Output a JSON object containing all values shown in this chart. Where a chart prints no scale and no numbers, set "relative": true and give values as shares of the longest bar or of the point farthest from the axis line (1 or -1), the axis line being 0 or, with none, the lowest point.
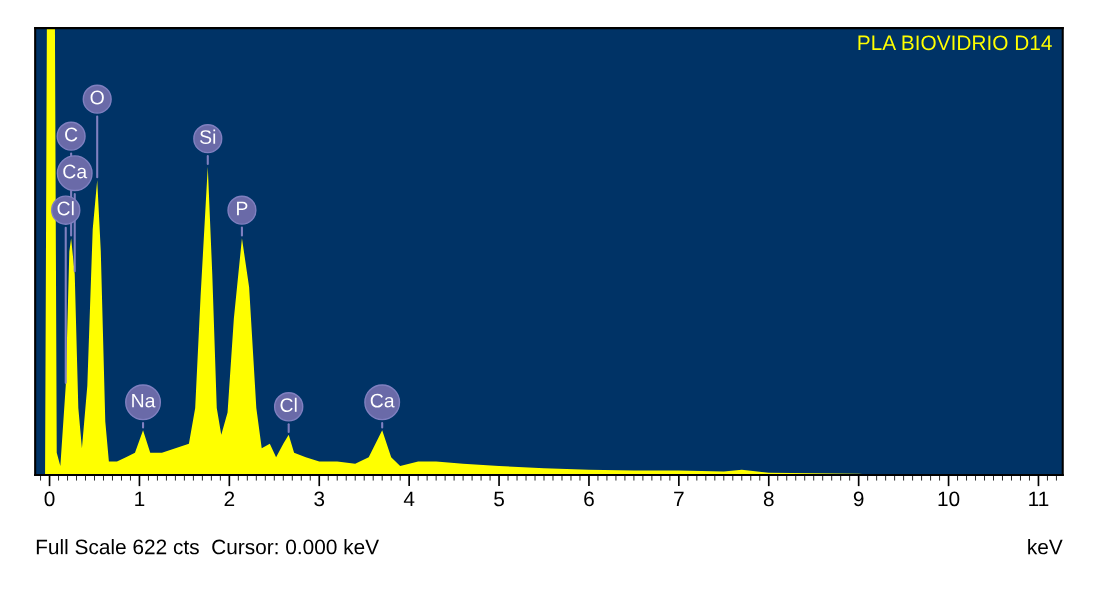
{
  "chart_data": {
    "type": "area",
    "title": "PLA BIOVIDRIO D14",
    "xlabel": "keV",
    "relative": true,
    "xlim": [
      -0.16,
      11.27
    ],
    "xticks": [
      0,
      1,
      2,
      3,
      4,
      5,
      6,
      7,
      8,
      9,
      10,
      11
    ],
    "grid": false,
    "legend": false,
    "series": [
      {
        "color": "#ffff00",
        "x": [
          -0.12,
          -0.05,
          -0.03,
          0.06,
          0.08,
          0.12,
          0.18,
          0.22,
          0.24,
          0.28,
          0.32,
          0.36,
          0.42,
          0.48,
          0.53,
          0.57,
          0.62,
          0.66,
          0.75,
          0.85,
          0.95,
          1.04,
          1.12,
          1.25,
          1.4,
          1.55,
          1.62,
          1.68,
          1.76,
          1.81,
          1.86,
          1.91,
          1.98,
          2.05,
          2.14,
          2.22,
          2.3,
          2.36,
          2.45,
          2.52,
          2.6,
          2.66,
          2.72,
          2.85,
          3.0,
          3.2,
          3.4,
          3.55,
          3.7,
          3.8,
          3.9,
          4.1,
          4.3,
          4.6,
          5.0,
          5.5,
          6.0,
          6.5,
          7.0,
          7.5,
          7.7,
          8.0,
          8.5,
          9.0,
          9.2
        ],
        "values": [
          0.0,
          0.0,
          1.0,
          1.0,
          0.05,
          0.02,
          0.2,
          0.5,
          0.53,
          0.45,
          0.15,
          0.06,
          0.2,
          0.55,
          0.66,
          0.5,
          0.12,
          0.03,
          0.03,
          0.04,
          0.05,
          0.1,
          0.05,
          0.05,
          0.06,
          0.07,
          0.15,
          0.4,
          0.69,
          0.45,
          0.15,
          0.09,
          0.14,
          0.35,
          0.53,
          0.42,
          0.15,
          0.06,
          0.07,
          0.04,
          0.07,
          0.09,
          0.05,
          0.04,
          0.03,
          0.03,
          0.025,
          0.04,
          0.1,
          0.04,
          0.02,
          0.03,
          0.03,
          0.025,
          0.02,
          0.015,
          0.012,
          0.01,
          0.01,
          0.008,
          0.012,
          0.005,
          0.004,
          0.003,
          0.0
        ]
      }
    ],
    "annotations": [
      {
        "text": "O",
        "x": 0.53,
        "y": 0.66
      },
      {
        "text": "C",
        "x": 0.24,
        "y": 0.53
      },
      {
        "text": "Ca",
        "x": 0.28,
        "y": 0.45
      },
      {
        "text": "Cl",
        "x": 0.18,
        "y": 0.2
      },
      {
        "text": "Na",
        "x": 1.04,
        "y": 0.1
      },
      {
        "text": "Si",
        "x": 1.76,
        "y": 0.69
      },
      {
        "text": "P",
        "x": 2.14,
        "y": 0.53
      },
      {
        "text": "Cl",
        "x": 2.66,
        "y": 0.09
      },
      {
        "text": "Ca",
        "x": 3.7,
        "y": 0.1
      },
      "Full Scale 622 cts  Cursor: 0.000 keV"
    ]
  }
}
